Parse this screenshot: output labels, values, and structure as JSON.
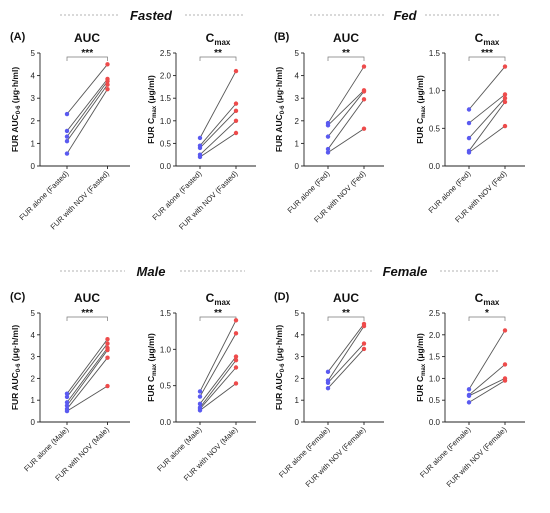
{
  "colors": {
    "before": "#5a5af0",
    "after": "#ee4b4b",
    "line": "#555555",
    "axis": "#222222",
    "divider": "#9a9a9a"
  },
  "sections": [
    {
      "title": "Fasted"
    },
    {
      "title": "Fed"
    },
    {
      "title": "Male"
    },
    {
      "title": "Female"
    }
  ],
  "chart_data": [
    {
      "type": "scatter",
      "panel_label": "(A)",
      "title": "AUC",
      "ylabel": "FUR AUC0-6 (μg·h/ml)",
      "categories": [
        "FUR alone (Fasted)",
        "FUR with NOV (Fasted)"
      ],
      "ylim": [
        0,
        5
      ],
      "yticks": [
        "0",
        "1",
        "2",
        "3",
        "4",
        "5"
      ],
      "significance": "***",
      "pairs": [
        [
          2.3,
          4.5
        ],
        [
          1.55,
          3.85
        ],
        [
          1.3,
          3.75
        ],
        [
          1.1,
          3.6
        ],
        [
          0.55,
          3.4
        ]
      ]
    },
    {
      "type": "scatter",
      "title": "Cmax",
      "ylabel": "FUR Cmax (μg/ml)",
      "categories": [
        "FUR alone (Fasted)",
        "FUR with NOV (Fasted)"
      ],
      "ylim": [
        0,
        2.5
      ],
      "yticks": [
        "0.0",
        "0.5",
        "1.0",
        "1.5",
        "2.0",
        "2.5"
      ],
      "significance": "**",
      "pairs": [
        [
          0.62,
          2.1
        ],
        [
          0.45,
          1.38
        ],
        [
          0.4,
          1.22
        ],
        [
          0.25,
          1.0
        ],
        [
          0.2,
          0.73
        ]
      ]
    },
    {
      "type": "scatter",
      "panel_label": "(B)",
      "title": "AUC",
      "ylabel": "FUR AUC0-6 (μg·h/ml)",
      "categories": [
        "FUR alone (Fed)",
        "FUR with NOV (Fed)"
      ],
      "ylim": [
        0,
        5
      ],
      "yticks": [
        "0",
        "1",
        "2",
        "3",
        "4",
        "5"
      ],
      "significance": "**",
      "pairs": [
        [
          1.9,
          4.4
        ],
        [
          1.8,
          3.35
        ],
        [
          1.3,
          3.3
        ],
        [
          0.75,
          2.95
        ],
        [
          0.6,
          1.65
        ]
      ]
    },
    {
      "type": "scatter",
      "title": "Cmax",
      "ylabel": "FUR Cmax (μg/ml)",
      "categories": [
        "FUR alone (Fed)",
        "FUR with NOV (Fed)"
      ],
      "ylim": [
        0,
        1.5
      ],
      "yticks": [
        "0.0",
        "0.5",
        "1.0",
        "1.5"
      ],
      "significance": "***",
      "pairs": [
        [
          0.75,
          1.32
        ],
        [
          0.57,
          0.95
        ],
        [
          0.37,
          0.9
        ],
        [
          0.2,
          0.85
        ],
        [
          0.18,
          0.53
        ]
      ]
    },
    {
      "type": "scatter",
      "panel_label": "(C)",
      "title": "AUC",
      "ylabel": "FUR AUC0-6 (μg·h/ml)",
      "categories": [
        "FUR alone (Male)",
        "FUR with NOV (Male)"
      ],
      "ylim": [
        0,
        5
      ],
      "yticks": [
        "0",
        "1",
        "2",
        "3",
        "4",
        "5"
      ],
      "significance": "***",
      "pairs": [
        [
          1.3,
          3.8
        ],
        [
          1.15,
          3.6
        ],
        [
          0.9,
          3.4
        ],
        [
          0.75,
          3.3
        ],
        [
          0.6,
          2.95
        ],
        [
          0.5,
          1.65
        ]
      ]
    },
    {
      "type": "scatter",
      "title": "Cmax",
      "ylabel": "FUR Cmax (μg/ml)",
      "categories": [
        "FUR alone (Male)",
        "FUR with NOV (Male)"
      ],
      "ylim": [
        0,
        1.5
      ],
      "yticks": [
        "0.0",
        "0.5",
        "1.0",
        "1.5"
      ],
      "significance": "**",
      "pairs": [
        [
          0.42,
          1.4
        ],
        [
          0.35,
          1.22
        ],
        [
          0.25,
          0.9
        ],
        [
          0.2,
          0.85
        ],
        [
          0.18,
          0.75
        ],
        [
          0.16,
          0.53
        ]
      ]
    },
    {
      "type": "scatter",
      "panel_label": "(D)",
      "title": "AUC",
      "ylabel": "FUR AUC0-6 (μg·h/ml)",
      "categories": [
        "FUR alone (Female)",
        "FUR with NOV (Female)"
      ],
      "ylim": [
        0,
        5
      ],
      "yticks": [
        "0",
        "1",
        "2",
        "3",
        "4",
        "5"
      ],
      "significance": "**",
      "pairs": [
        [
          2.3,
          4.5
        ],
        [
          1.9,
          4.4
        ],
        [
          1.8,
          3.6
        ],
        [
          1.55,
          3.35
        ]
      ]
    },
    {
      "type": "scatter",
      "title": "Cmax",
      "ylabel": "FUR Cmax (μg/ml)",
      "categories": [
        "FUR alone (Female)",
        "FUR with NOV (Female)"
      ],
      "ylim": [
        0,
        2.5
      ],
      "yticks": [
        "0.0",
        "0.5",
        "1.0",
        "1.5",
        "2.0",
        "2.5"
      ],
      "significance": "*",
      "pairs": [
        [
          0.75,
          2.1
        ],
        [
          0.62,
          1.32
        ],
        [
          0.6,
          1.0
        ],
        [
          0.45,
          0.95
        ]
      ]
    }
  ]
}
